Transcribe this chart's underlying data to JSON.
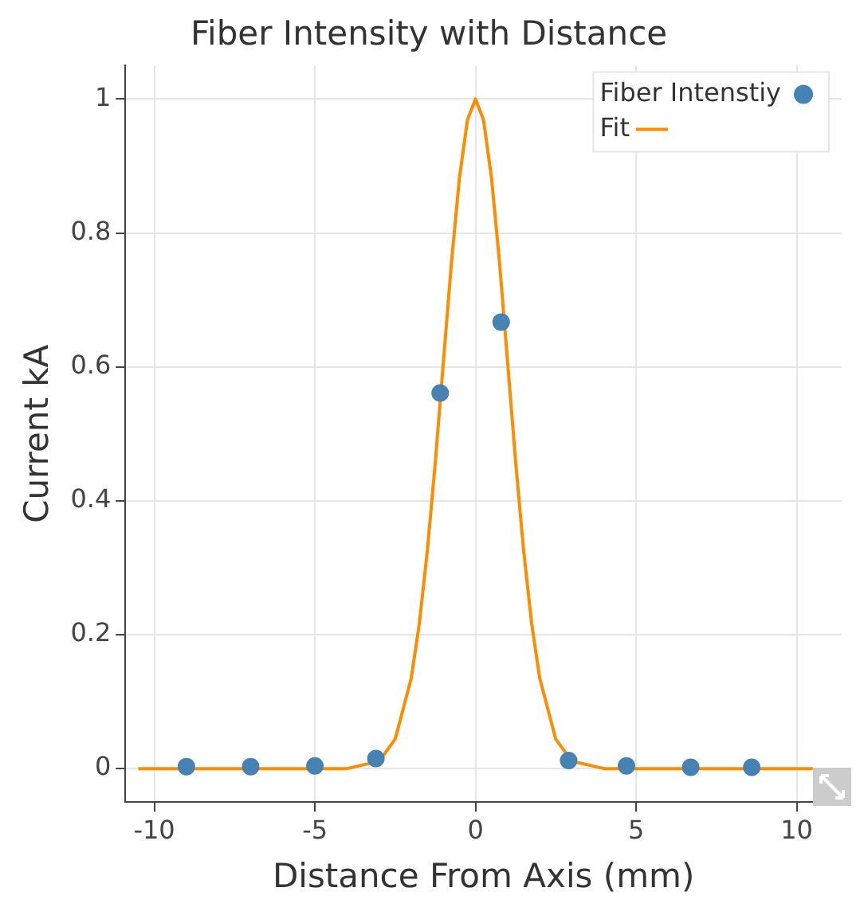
{
  "chart_data": {
    "type": "scatter",
    "title": "Fiber Intensity with Distance",
    "xlabel": "Distance From Axis (mm)",
    "ylabel": "Current kA",
    "xlim": [
      -10.9,
      11.4
    ],
    "ylim": [
      -0.05,
      1.05
    ],
    "xticks": [
      -10,
      -5,
      0,
      5,
      10
    ],
    "yticks": [
      0,
      0.2,
      0.4,
      0.6,
      0.8,
      1
    ],
    "grid": true,
    "legend": "top right",
    "series": [
      {
        "name": "Fiber Intenstiy",
        "type": "scatter",
        "marker": "circle",
        "color": "#4682b4",
        "x": [
          -9,
          -7,
          -5,
          -3.1,
          -1.1,
          0.8,
          2.9,
          4.7,
          6.7,
          8.6
        ],
        "values": [
          0.003,
          0.003,
          0.004,
          0.015,
          0.561,
          0.667,
          0.012,
          0.004,
          0.002,
          0.002
        ]
      },
      {
        "name": "Fit",
        "type": "line",
        "marker": "none",
        "line_style": "solid",
        "color": "#ff8c00",
        "x": [
          -10.5,
          -8,
          -6,
          -4,
          -3,
          -2.5,
          -2,
          -1.75,
          -1.5,
          -1.25,
          -1,
          -0.75,
          -0.5,
          -0.25,
          0,
          0.25,
          0.5,
          0.75,
          1,
          1.25,
          1.5,
          1.75,
          2,
          2.5,
          3,
          4,
          6,
          8,
          10.5
        ],
        "values": [
          0,
          0,
          0,
          0,
          0.011,
          0.044,
          0.135,
          0.216,
          0.325,
          0.458,
          0.607,
          0.755,
          0.882,
          0.969,
          1,
          0.969,
          0.882,
          0.755,
          0.607,
          0.458,
          0.325,
          0.216,
          0.135,
          0.044,
          0.011,
          0,
          0,
          0,
          0
        ]
      }
    ]
  }
}
